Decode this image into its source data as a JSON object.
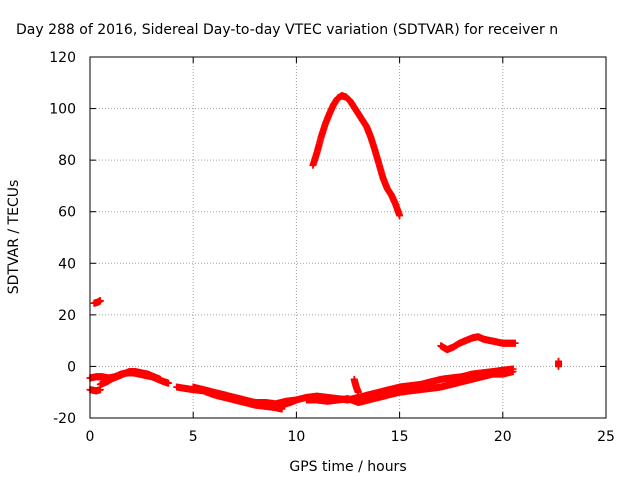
{
  "chart_data": {
    "type": "scatter",
    "title": "Day 288 of 2016, Sidereal Day-to-day VTEC variation (SDTVAR) for receiver n",
    "xlabel": "GPS time / hours",
    "ylabel": "SDTVAR / TECUs",
    "xlim": [
      0,
      25
    ],
    "ylim": [
      -20,
      120
    ],
    "xticks": [
      0,
      5,
      10,
      15,
      20,
      25
    ],
    "yticks": [
      -20,
      0,
      20,
      40,
      60,
      80,
      100,
      120
    ],
    "grid": true,
    "marker": "plus",
    "series": [
      {
        "name": "SDTVAR",
        "color": "#ff0000",
        "segments": [
          [
            [
              0.0,
              -4.5
            ],
            [
              0.3,
              -4
            ],
            [
              0.6,
              -4
            ],
            [
              0.9,
              -4.5
            ],
            [
              1.2,
              -4
            ],
            [
              1.5,
              -3
            ],
            [
              1.8,
              -2.5
            ],
            [
              2.1,
              -2.5
            ],
            [
              2.4,
              -3
            ],
            [
              2.7,
              -3.5
            ],
            [
              3.0,
              -4
            ],
            [
              3.3,
              -5
            ],
            [
              3.6,
              -6
            ],
            [
              3.8,
              -6.5
            ]
          ],
          [
            [
              0.0,
              -9
            ],
            [
              0.3,
              -9.5
            ],
            [
              0.5,
              -9
            ]
          ],
          [
            [
              0.2,
              24.5
            ],
            [
              0.4,
              25
            ],
            [
              0.5,
              25.5
            ]
          ],
          [
            [
              0.5,
              -7
            ],
            [
              0.8,
              -6
            ],
            [
              1.0,
              -5
            ],
            [
              1.3,
              -4
            ],
            [
              1.6,
              -3
            ],
            [
              1.9,
              -2
            ],
            [
              2.2,
              -2
            ],
            [
              2.5,
              -2.5
            ],
            [
              2.8,
              -3
            ],
            [
              3.1,
              -4
            ],
            [
              3.4,
              -5
            ]
          ],
          [
            [
              4.2,
              -8
            ],
            [
              4.6,
              -8.5
            ],
            [
              5.0,
              -9
            ],
            [
              5.5,
              -9.5
            ],
            [
              6.0,
              -11
            ],
            [
              6.5,
              -12
            ],
            [
              7.0,
              -13
            ],
            [
              7.5,
              -14
            ],
            [
              8.0,
              -15
            ],
            [
              8.5,
              -15.5
            ],
            [
              9.0,
              -16
            ],
            [
              9.3,
              -16.5
            ]
          ],
          [
            [
              5.0,
              -8
            ],
            [
              5.5,
              -9
            ],
            [
              6.0,
              -10
            ],
            [
              6.5,
              -11
            ],
            [
              7.0,
              -12
            ],
            [
              7.5,
              -13
            ],
            [
              8.0,
              -14
            ],
            [
              8.5,
              -14
            ],
            [
              9.0,
              -14.5
            ],
            [
              9.5,
              -13.5
            ],
            [
              10.0,
              -13
            ]
          ],
          [
            [
              9.3,
              -15
            ],
            [
              9.7,
              -14
            ],
            [
              10.0,
              -13
            ],
            [
              10.5,
              -12
            ],
            [
              11.0,
              -11.5
            ],
            [
              11.5,
              -12
            ],
            [
              12.0,
              -12.5
            ],
            [
              12.5,
              -13
            ],
            [
              13.0,
              -12
            ],
            [
              13.5,
              -11
            ],
            [
              14.0,
              -10
            ],
            [
              14.5,
              -9
            ],
            [
              15.0,
              -8
            ],
            [
              15.5,
              -7.5
            ],
            [
              16.0,
              -7
            ],
            [
              16.5,
              -6
            ],
            [
              17.0,
              -5
            ],
            [
              17.5,
              -4.5
            ],
            [
              18.0,
              -4
            ],
            [
              18.5,
              -3
            ],
            [
              19.0,
              -2.5
            ],
            [
              19.5,
              -2
            ],
            [
              20.0,
              -1.5
            ],
            [
              20.5,
              -1
            ]
          ],
          [
            [
              10.5,
              -13
            ],
            [
              11.0,
              -13
            ],
            [
              11.5,
              -13.5
            ],
            [
              12.0,
              -13
            ],
            [
              12.5,
              -12.5
            ],
            [
              13.0,
              -14
            ],
            [
              13.5,
              -13
            ],
            [
              14.0,
              -12
            ],
            [
              14.5,
              -11
            ],
            [
              15.0,
              -10
            ],
            [
              15.5,
              -9.5
            ],
            [
              16.0,
              -9
            ],
            [
              16.5,
              -8.5
            ],
            [
              17.0,
              -8
            ],
            [
              17.5,
              -7
            ],
            [
              18.0,
              -6
            ],
            [
              18.5,
              -5
            ],
            [
              19.0,
              -4
            ],
            [
              19.5,
              -3
            ],
            [
              20.0,
              -3
            ],
            [
              20.5,
              -2
            ]
          ],
          [
            [
              12.8,
              -5
            ],
            [
              12.9,
              -8
            ],
            [
              13.0,
              -10
            ]
          ],
          [
            [
              10.8,
              78
            ],
            [
              11.0,
              83
            ],
            [
              11.2,
              89
            ],
            [
              11.4,
              94
            ],
            [
              11.6,
              98
            ],
            [
              11.8,
              101.5
            ],
            [
              12.0,
              104
            ],
            [
              12.2,
              105
            ],
            [
              12.4,
              104.5
            ],
            [
              12.6,
              103
            ],
            [
              12.8,
              100.5
            ],
            [
              13.0,
              98
            ],
            [
              13.2,
              95.5
            ],
            [
              13.4,
              93
            ],
            [
              13.6,
              89
            ],
            [
              13.8,
              84
            ],
            [
              14.0,
              78.5
            ],
            [
              14.2,
              73
            ],
            [
              14.4,
              69
            ],
            [
              14.6,
              66.5
            ],
            [
              14.8,
              63
            ],
            [
              15.0,
              58.5
            ]
          ],
          [
            [
              17.0,
              8
            ],
            [
              17.3,
              6.5
            ],
            [
              17.6,
              7.5
            ],
            [
              17.9,
              9
            ],
            [
              18.2,
              10
            ],
            [
              18.5,
              11
            ],
            [
              18.8,
              11.5
            ],
            [
              19.1,
              10.5
            ],
            [
              19.4,
              10
            ],
            [
              19.7,
              9.5
            ],
            [
              20.0,
              9
            ],
            [
              20.3,
              9
            ],
            [
              20.6,
              9
            ]
          ],
          [
            [
              22.7,
              2
            ],
            [
              22.7,
              0
            ]
          ]
        ]
      }
    ]
  }
}
